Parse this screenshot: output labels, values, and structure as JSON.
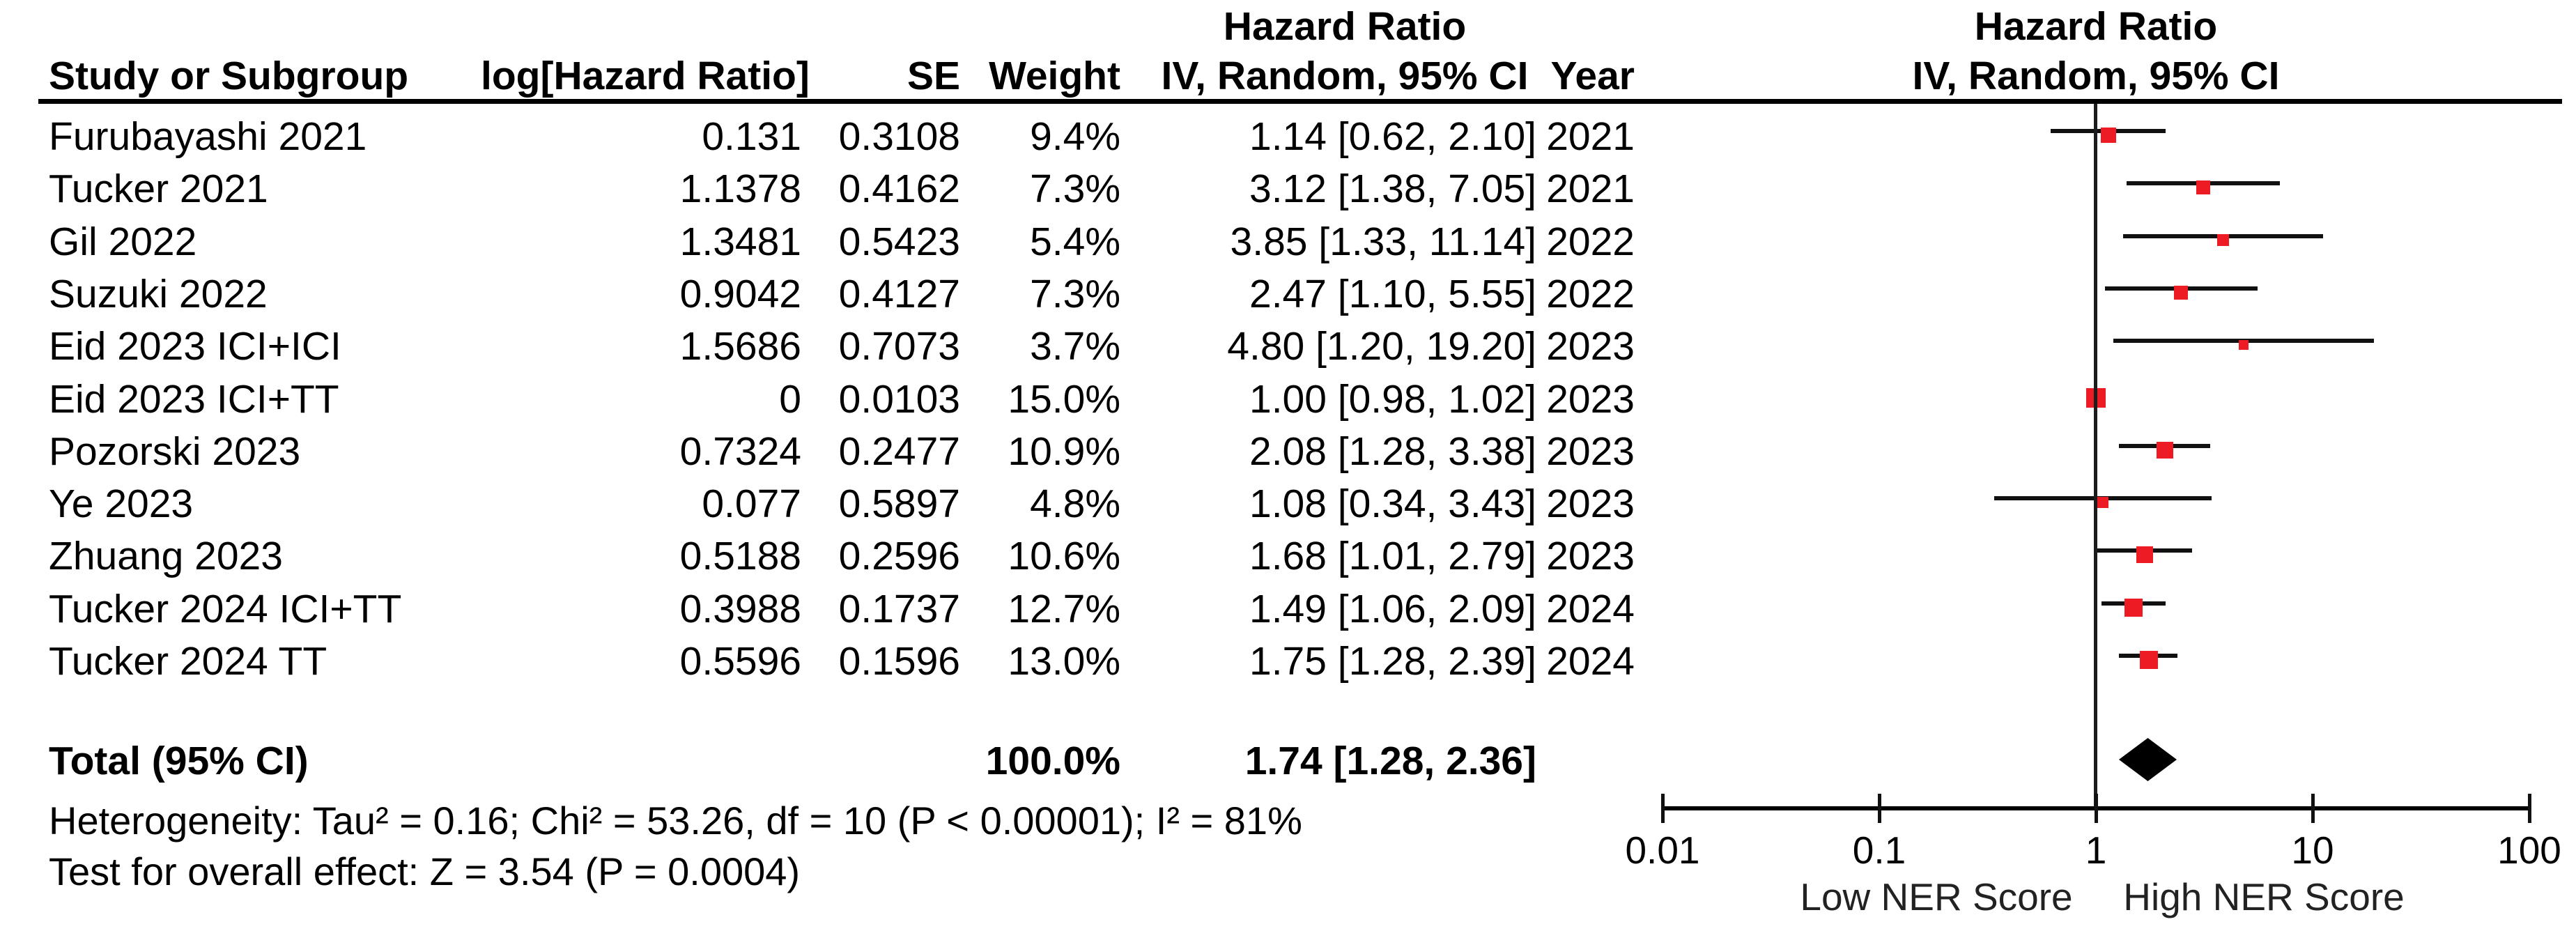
{
  "header": {
    "col_study": "Study or Subgroup",
    "col_loghr": "log[Hazard Ratio]",
    "col_se": "SE",
    "col_weight": "Weight",
    "col_ci": "IV, Random, 95% CI",
    "col_year": "Year",
    "left_block_title": "Hazard Ratio",
    "plot_title": "Hazard Ratio",
    "plot_subtitle": "IV, Random, 95% CI"
  },
  "footer": {
    "heterogeneity": "Heterogeneity: Tau² = 0.16; Chi² = 53.26, df = 10 (P < 0.00001); I² = 81%",
    "overall_effect": "Test for overall effect: Z = 3.54 (P = 0.0004)"
  },
  "axis_labels": {
    "low": "Low NER Score",
    "high": "High NER Score"
  },
  "colors": {
    "marker_red": "#ED1C24",
    "line": "#111111",
    "text": "#000000"
  },
  "chart_data": {
    "type": "scatter",
    "subtype": "forest-plot",
    "x_scale": "log10",
    "x_range": [
      0.01,
      100
    ],
    "x_ticks": [
      0.01,
      0.1,
      1,
      10,
      100
    ],
    "x_tick_labels": [
      "0.01",
      "0.1",
      "1",
      "10",
      "100"
    ],
    "reference_line_x": 1,
    "legend_position": "none",
    "grid": false,
    "studies": [
      {
        "name": "Furubayashi 2021",
        "log_hr": "0.131",
        "se": "0.3108",
        "weight": "9.4%",
        "weight_value": 9.4,
        "hr": 1.14,
        "ci_low": 0.62,
        "ci_high": 2.1,
        "ci_text": "1.14 [0.62, 2.10]",
        "year": "2021"
      },
      {
        "name": "Tucker 2021",
        "log_hr": "1.1378",
        "se": "0.4162",
        "weight": "7.3%",
        "weight_value": 7.3,
        "hr": 3.12,
        "ci_low": 1.38,
        "ci_high": 7.05,
        "ci_text": "3.12 [1.38, 7.05]",
        "year": "2021"
      },
      {
        "name": "Gil 2022",
        "log_hr": "1.3481",
        "se": "0.5423",
        "weight": "5.4%",
        "weight_value": 5.4,
        "hr": 3.85,
        "ci_low": 1.33,
        "ci_high": 11.14,
        "ci_text": "3.85 [1.33, 11.14]",
        "year": "2022"
      },
      {
        "name": "Suzuki 2022",
        "log_hr": "0.9042",
        "se": "0.4127",
        "weight": "7.3%",
        "weight_value": 7.3,
        "hr": 2.47,
        "ci_low": 1.1,
        "ci_high": 5.55,
        "ci_text": "2.47 [1.10, 5.55]",
        "year": "2022"
      },
      {
        "name": "Eid 2023 ICI+ICI",
        "log_hr": "1.5686",
        "se": "0.7073",
        "weight": "3.7%",
        "weight_value": 3.7,
        "hr": 4.8,
        "ci_low": 1.2,
        "ci_high": 19.2,
        "ci_text": "4.80 [1.20, 19.20]",
        "year": "2023"
      },
      {
        "name": "Eid 2023 ICI+TT",
        "log_hr": "0",
        "se": "0.0103",
        "weight": "15.0%",
        "weight_value": 15.0,
        "hr": 1.0,
        "ci_low": 0.98,
        "ci_high": 1.02,
        "ci_text": "1.00 [0.98, 1.02]",
        "year": "2023"
      },
      {
        "name": "Pozorski 2023",
        "log_hr": "0.7324",
        "se": "0.2477",
        "weight": "10.9%",
        "weight_value": 10.9,
        "hr": 2.08,
        "ci_low": 1.28,
        "ci_high": 3.38,
        "ci_text": "2.08 [1.28, 3.38]",
        "year": "2023"
      },
      {
        "name": "Ye 2023",
        "log_hr": "0.077",
        "se": "0.5897",
        "weight": "4.8%",
        "weight_value": 4.8,
        "hr": 1.08,
        "ci_low": 0.34,
        "ci_high": 3.43,
        "ci_text": "1.08 [0.34, 3.43]",
        "year": "2023"
      },
      {
        "name": "Zhuang 2023",
        "log_hr": "0.5188",
        "se": "0.2596",
        "weight": "10.6%",
        "weight_value": 10.6,
        "hr": 1.68,
        "ci_low": 1.01,
        "ci_high": 2.79,
        "ci_text": "1.68 [1.01, 2.79]",
        "year": "2023"
      },
      {
        "name": "Tucker 2024 ICI+TT",
        "log_hr": "0.3988",
        "se": "0.1737",
        "weight": "12.7%",
        "weight_value": 12.7,
        "hr": 1.49,
        "ci_low": 1.06,
        "ci_high": 2.09,
        "ci_text": "1.49 [1.06, 2.09]",
        "year": "2024"
      },
      {
        "name": "Tucker 2024 TT",
        "log_hr": "0.5596",
        "se": "0.1596",
        "weight": "13.0%",
        "weight_value": 13.0,
        "hr": 1.75,
        "ci_low": 1.28,
        "ci_high": 2.39,
        "ci_text": "1.75 [1.28, 2.39]",
        "year": "2024"
      }
    ],
    "total": {
      "label": "Total (95% CI)",
      "weight": "100.0%",
      "hr": 1.74,
      "ci_low": 1.28,
      "ci_high": 2.36,
      "ci_text": "1.74 [1.28, 2.36]"
    }
  }
}
